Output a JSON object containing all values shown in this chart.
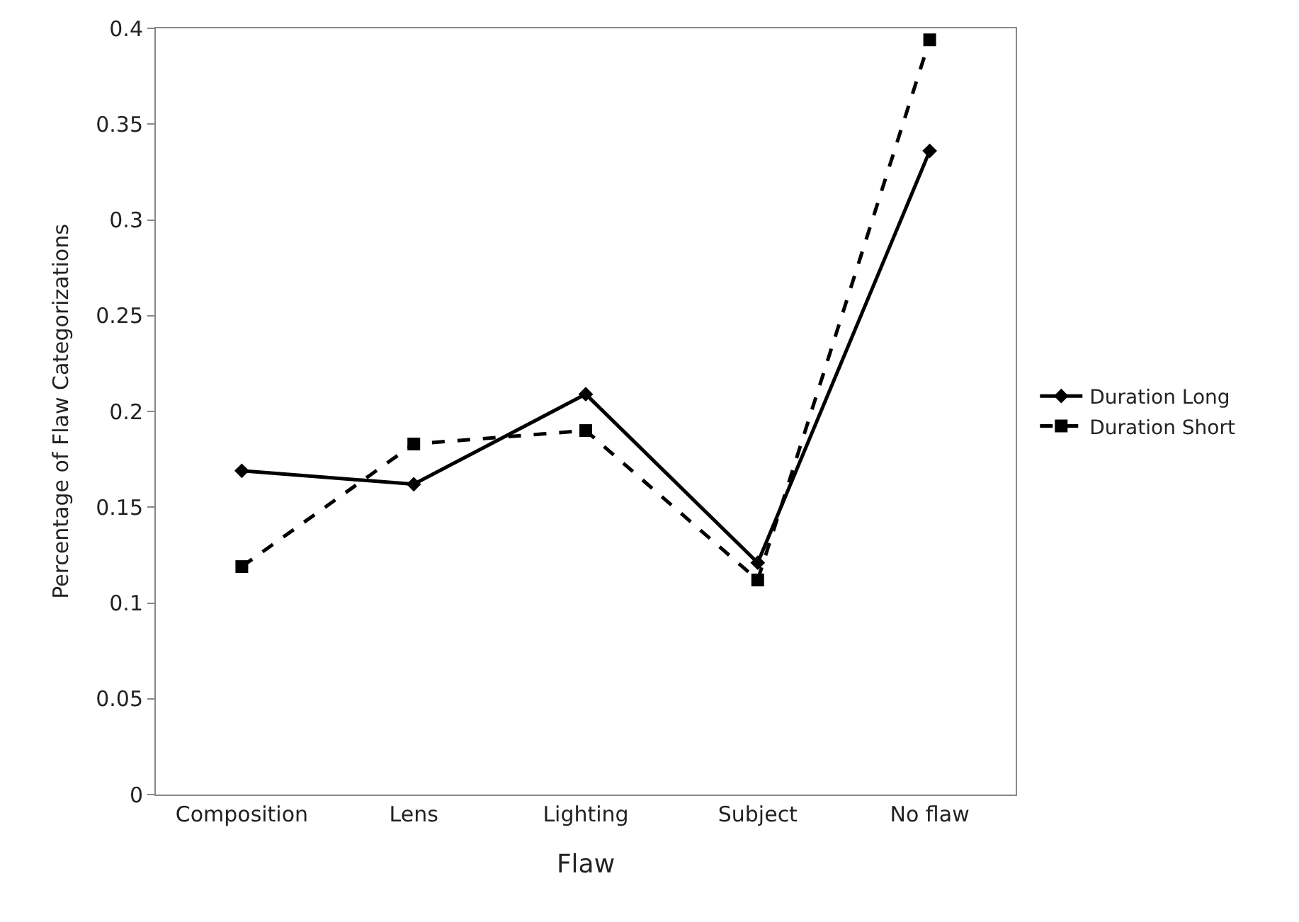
{
  "chart_data": {
    "type": "line",
    "xlabel": "Flaw",
    "ylabel": "Percentage of Flaw Categorizations",
    "categories": [
      "Composition",
      "Lens",
      "Lighting",
      "Subject",
      "No flaw"
    ],
    "series": [
      {
        "name": "Duration Long",
        "color": "#000000",
        "marker": "diamond",
        "line_style": "solid",
        "values": [
          0.169,
          0.162,
          0.209,
          0.121,
          0.336
        ]
      },
      {
        "name": "Duration Short",
        "color": "#000000",
        "marker": "square",
        "line_style": "dashed",
        "values": [
          0.119,
          0.183,
          0.19,
          0.112,
          0.394
        ]
      }
    ],
    "ylim": [
      0,
      0.4
    ],
    "yticks": [
      0,
      0.05,
      0.1,
      0.15,
      0.2,
      0.25,
      0.3,
      0.35,
      0.4
    ],
    "grid": false,
    "legend": "right"
  }
}
